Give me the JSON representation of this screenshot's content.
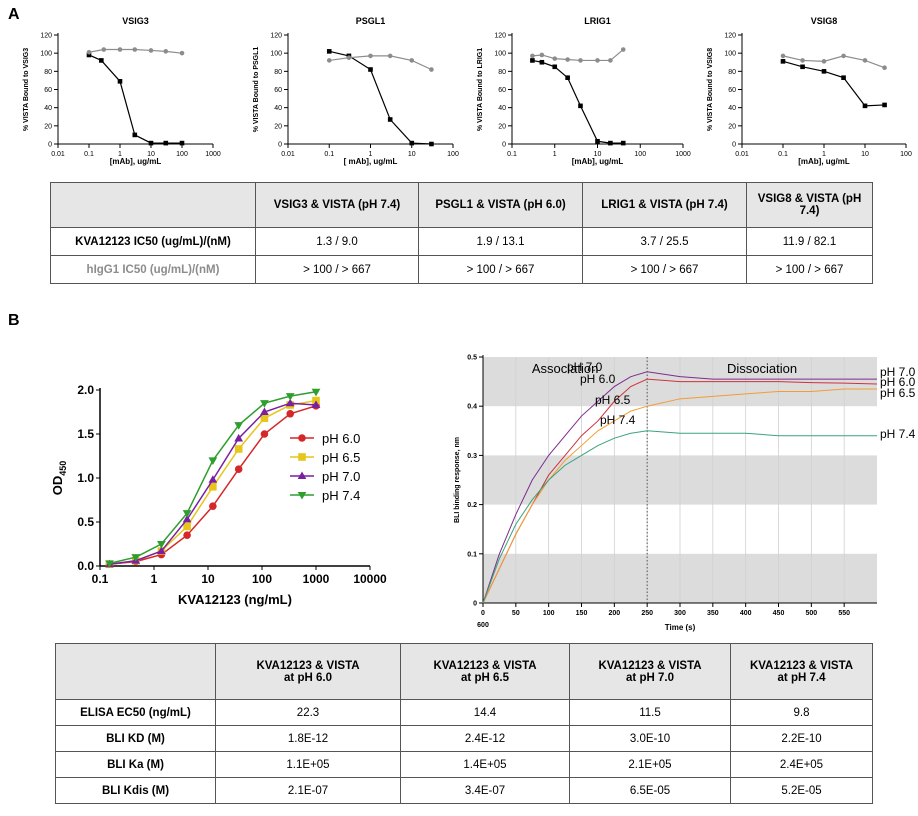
{
  "panels": [
    "A",
    "B"
  ],
  "chart_data": [
    {
      "type": "dose-response",
      "title": "VSIG3",
      "ylabel": "% VISTA Bound to VSIG3",
      "xlabel": "[mAb], ug/mL",
      "log_x": true,
      "xlim": [
        0.01,
        1000
      ],
      "xticks": [
        0.01,
        0.1,
        1,
        10,
        100,
        1000
      ],
      "ylim": [
        0,
        120
      ],
      "yticks": [
        0,
        20,
        40,
        60,
        80,
        100,
        120
      ],
      "series": [
        {
          "color": "#000000",
          "marker": "square",
          "x": [
            0.1,
            0.25,
            1,
            3,
            10,
            30,
            100
          ],
          "values": [
            98,
            92,
            69,
            10,
            1,
            1,
            1
          ]
        },
        {
          "color": "#8c8c8c",
          "marker": "circle",
          "x": [
            0.1,
            0.3,
            1,
            3,
            10,
            30,
            100
          ],
          "values": [
            101,
            104,
            104,
            104,
            103,
            102,
            100
          ]
        }
      ]
    },
    {
      "type": "dose-response",
      "title": "PSGL1",
      "ylabel": "% VISTA Bound to PSGL1",
      "xlabel": "[ mAb], ug/mL",
      "log_x": true,
      "xlim": [
        0.01,
        100
      ],
      "xticks": [
        0.01,
        0.1,
        1,
        10,
        100
      ],
      "ylim": [
        0,
        120
      ],
      "yticks": [
        0,
        20,
        40,
        60,
        80,
        100,
        120
      ],
      "series": [
        {
          "color": "#000000",
          "marker": "square",
          "x": [
            0.1,
            0.3,
            1,
            3,
            10,
            30
          ],
          "values": [
            102,
            97,
            82,
            27,
            1,
            0
          ]
        },
        {
          "color": "#8c8c8c",
          "marker": "circle",
          "x": [
            0.1,
            0.3,
            1,
            3,
            10,
            30
          ],
          "values": [
            92,
            95,
            97,
            97,
            92,
            82
          ]
        }
      ]
    },
    {
      "type": "dose-response",
      "title": "LRIG1",
      "ylabel": "% VISTA Bound to LRIG1",
      "xlabel": "[mAb], ug/mL",
      "log_x": true,
      "xlim": [
        0.1,
        1000
      ],
      "xticks": [
        0.1,
        1,
        10,
        100,
        1000
      ],
      "ylim": [
        0,
        120
      ],
      "yticks": [
        0,
        20,
        40,
        60,
        80,
        100,
        120
      ],
      "series": [
        {
          "color": "#000000",
          "marker": "square",
          "x": [
            0.3,
            0.5,
            1,
            2,
            4,
            10,
            20,
            40
          ],
          "values": [
            92,
            90,
            85,
            73,
            42,
            3,
            1,
            1
          ]
        },
        {
          "color": "#8c8c8c",
          "marker": "circle",
          "x": [
            0.3,
            0.5,
            1,
            2,
            4,
            10,
            20,
            40
          ],
          "values": [
            97,
            98,
            94,
            93,
            92,
            92,
            92,
            104
          ]
        }
      ]
    },
    {
      "type": "dose-response",
      "title": "VSIG8",
      "ylabel": "% VISTA Bound to VSIG8",
      "xlabel": "[mAb], ug/mL",
      "log_x": true,
      "xlim": [
        0.01,
        100
      ],
      "xticks": [
        0.01,
        0.1,
        1,
        10,
        100
      ],
      "ylim": [
        0,
        120
      ],
      "yticks": [
        0,
        20,
        40,
        60,
        80,
        100,
        120
      ],
      "series": [
        {
          "color": "#000000",
          "marker": "square",
          "x": [
            0.1,
            0.3,
            1,
            3,
            10,
            30
          ],
          "values": [
            91,
            85,
            80,
            73,
            42,
            43
          ]
        },
        {
          "color": "#8c8c8c",
          "marker": "circle",
          "x": [
            0.1,
            0.3,
            1,
            3,
            10,
            30
          ],
          "values": [
            97,
            92,
            91,
            97,
            92,
            84
          ]
        }
      ]
    },
    {
      "type": "dose-response",
      "ylabel": "OD",
      "ylabel_sub": "450",
      "xlabel": "KVA12123 (ng/mL)",
      "log_x": true,
      "legend": "right",
      "xlim": [
        0.1,
        10000
      ],
      "xticks": [
        0.1,
        1,
        10,
        100,
        1000,
        10000
      ],
      "ylim": [
        0,
        2.0
      ],
      "yticks": [
        {
          "value": 0,
          "label": "0.0"
        },
        0.5,
        {
          "value": 1,
          "label": "1.0"
        },
        1.5,
        {
          "value": 2,
          "label": "2.0"
        }
      ],
      "series": [
        {
          "name": "pH 6.0",
          "color": "#d62728",
          "marker": "circle",
          "x": [
            0.15,
            0.46,
            1.37,
            4.1,
            12.3,
            37,
            111,
            333,
            1000
          ],
          "values": [
            0.02,
            0.05,
            0.13,
            0.35,
            0.68,
            1.1,
            1.5,
            1.73,
            1.82
          ]
        },
        {
          "name": "pH 6.5",
          "color": "#e6c619",
          "marker": "square",
          "x": [
            0.15,
            0.46,
            1.37,
            4.1,
            12.3,
            37,
            111,
            333,
            1000
          ],
          "values": [
            0.02,
            0.06,
            0.17,
            0.45,
            0.9,
            1.33,
            1.68,
            1.83,
            1.88
          ]
        },
        {
          "name": "pH 7.0",
          "color": "#7b1fa2",
          "marker": "triangle",
          "x": [
            0.15,
            0.46,
            1.37,
            4.1,
            12.3,
            37,
            111,
            333,
            1000
          ],
          "values": [
            0.02,
            0.06,
            0.17,
            0.53,
            0.98,
            1.45,
            1.75,
            1.85,
            1.83
          ]
        },
        {
          "name": "pH 7.4",
          "color": "#2e9e2e",
          "marker": "triangle-down",
          "x": [
            0.15,
            0.46,
            1.37,
            4.1,
            12.3,
            37,
            111,
            333,
            1000
          ],
          "values": [
            0.03,
            0.1,
            0.25,
            0.6,
            1.2,
            1.6,
            1.85,
            1.93,
            1.98
          ]
        }
      ]
    },
    {
      "type": "sensorgram",
      "ylabel": "BLI binding response, nm",
      "xlabel": "Time (s)",
      "grid": true,
      "bands": true,
      "annotations": [
        "Association",
        "Dissociation",
        "600"
      ],
      "phase_split": 250,
      "xlim": [
        0,
        600
      ],
      "xticks": [
        0,
        50,
        100,
        150,
        200,
        250,
        300,
        350,
        400,
        450,
        500,
        550
      ],
      "ylim": [
        0,
        0.5
      ],
      "yticks": [
        0,
        0.1,
        0.2,
        0.3,
        0.4,
        0.5
      ],
      "x": [
        0,
        25,
        50,
        75,
        100,
        125,
        150,
        175,
        200,
        225,
        250,
        300,
        350,
        400,
        450,
        500,
        550,
        600
      ],
      "series": [
        {
          "name": "pH 7.0",
          "color": "#7b2d8e",
          "values": [
            0,
            0.1,
            0.18,
            0.25,
            0.3,
            0.34,
            0.38,
            0.41,
            0.44,
            0.46,
            0.47,
            0.46,
            0.455,
            0.455,
            0.455,
            0.455,
            0.455,
            0.455
          ]
        },
        {
          "name": "pH 6.0",
          "color": "#d0313d",
          "values": [
            0,
            0.07,
            0.14,
            0.2,
            0.26,
            0.3,
            0.34,
            0.37,
            0.41,
            0.44,
            0.455,
            0.45,
            0.45,
            0.45,
            0.45,
            0.448,
            0.447,
            0.445
          ]
        },
        {
          "name": "pH 6.5",
          "color": "#f39c34",
          "values": [
            0,
            0.07,
            0.14,
            0.2,
            0.25,
            0.29,
            0.32,
            0.35,
            0.37,
            0.39,
            0.4,
            0.415,
            0.42,
            0.425,
            0.43,
            0.43,
            0.435,
            0.435
          ]
        },
        {
          "name": "pH 7.4",
          "color": "#3aa37a",
          "values": [
            0,
            0.09,
            0.16,
            0.21,
            0.25,
            0.28,
            0.3,
            0.32,
            0.335,
            0.345,
            0.35,
            0.345,
            0.345,
            0.345,
            0.34,
            0.34,
            0.34,
            0.34
          ]
        }
      ]
    }
  ],
  "tables": [
    {
      "headers": [
        "VSIG3 & VISTA (pH 7.4)",
        "PSGL1 & VISTA (pH 6.0)",
        "LRIG1 & VISTA (pH 7.4)",
        "VSIG8 & VISTA (pH 7.4)"
      ],
      "rows": [
        {
          "label": "KVA12123 IC50 (ug/mL)/(nM)",
          "cells": [
            "1.3 / 9.0",
            "1.9 / 13.1",
            "3.7 / 25.5",
            "11.9 / 82.1"
          ]
        },
        {
          "label": "hIgG1 IC50 (ug/mL)/(nM)",
          "cells": [
            "> 100 / > 667",
            "> 100 / > 667",
            "> 100 / > 667",
            "> 100 / > 667"
          ]
        }
      ]
    },
    {
      "headers": [
        [
          "KVA12123 & VISTA",
          "at pH 6.0"
        ],
        [
          "KVA12123 & VISTA",
          "at pH 6.5"
        ],
        [
          "KVA12123 & VISTA",
          "at pH 7.0"
        ],
        [
          "KVA12123 & VISTA",
          "at pH 7.4"
        ]
      ],
      "rows": [
        {
          "label": "ELISA EC50 (ng/mL)",
          "cells": [
            "22.3",
            "14.4",
            "11.5",
            "9.8"
          ]
        },
        {
          "label": "BLI KD (M)",
          "cells": [
            "1.8E-12",
            "2.4E-12",
            "3.0E-10",
            "2.2E-10"
          ]
        },
        {
          "label": "BLI Ka (M)",
          "cells": [
            "1.1E+05",
            "1.4E+05",
            "2.1E+05",
            "2.4E+05"
          ]
        },
        {
          "label": "BLI Kdis (M)",
          "cells": [
            "2.1E-07",
            "3.4E-07",
            "6.5E-05",
            "5.2E-05"
          ]
        }
      ]
    }
  ]
}
